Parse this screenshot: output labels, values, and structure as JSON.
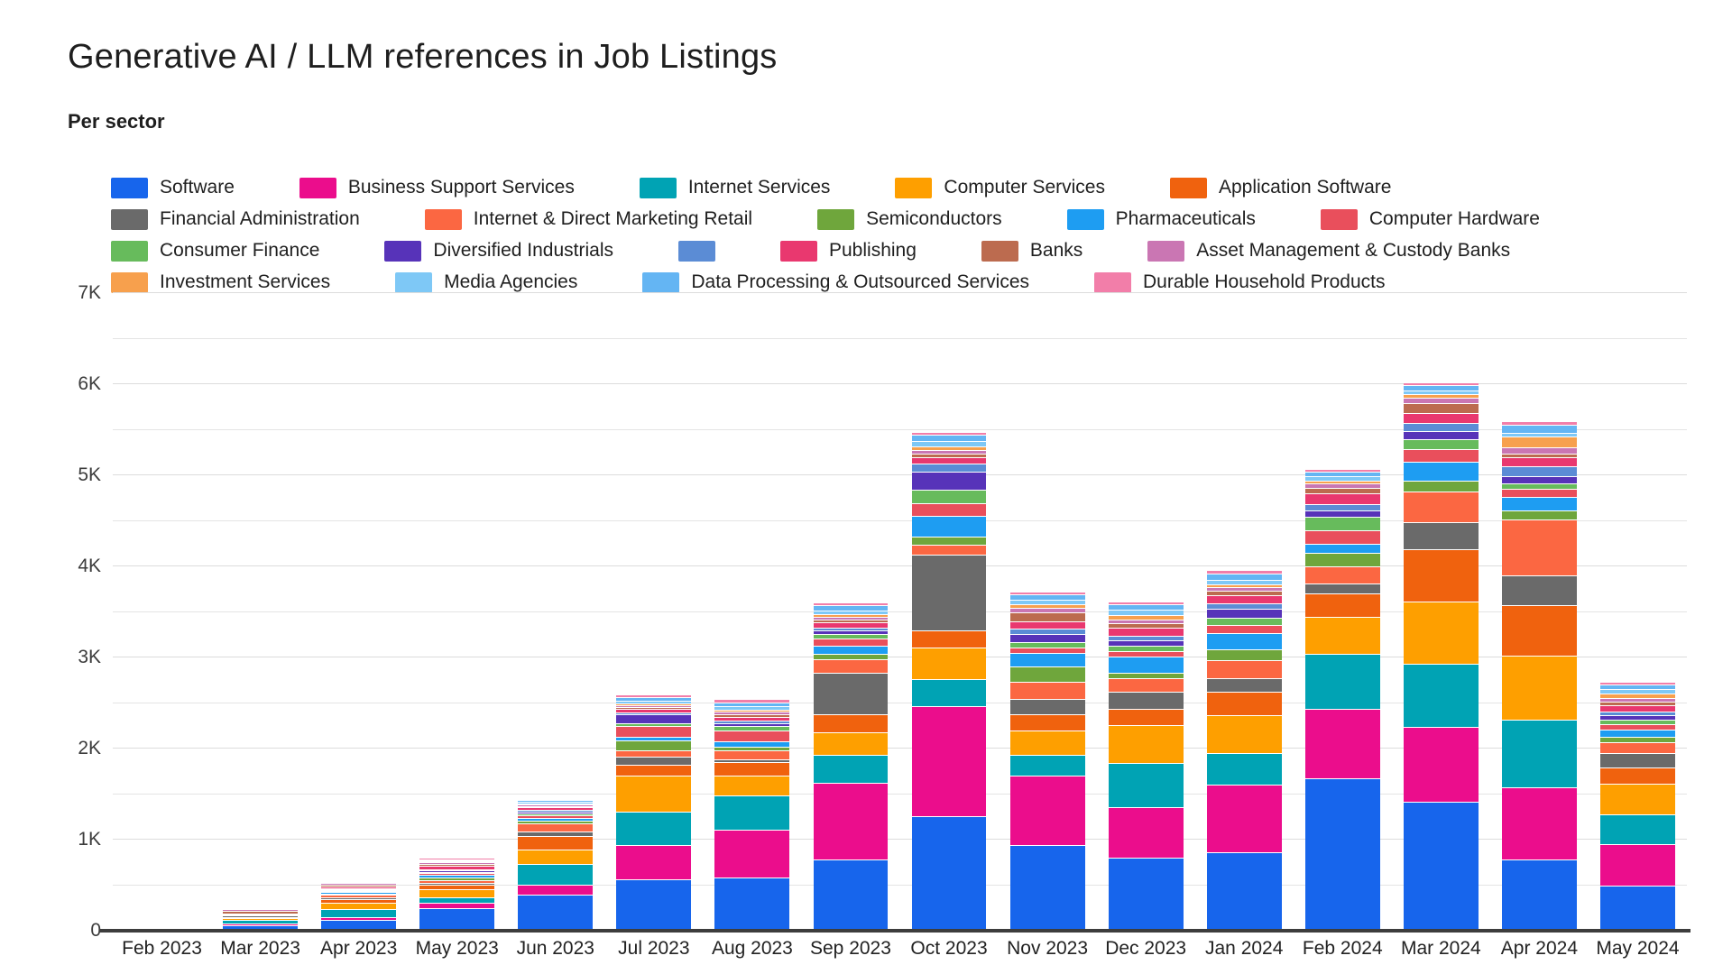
{
  "header": {
    "title": "Generative AI / LLM references in Job Listings",
    "subtitle": "Per sector"
  },
  "chart_data": {
    "type": "bar",
    "stacked": true,
    "title": "Generative AI / LLM references in Job Listings",
    "subtitle": "Per sector",
    "xlabel": "",
    "ylabel": "",
    "ylim": [
      0,
      7000
    ],
    "gridline_step": 500,
    "grid_on": true,
    "legend_position": "top",
    "grid_color": "#e4e4e4",
    "axis_color": "#3d3d3d",
    "y_ticks": [
      0,
      1000,
      2000,
      3000,
      4000,
      5000,
      6000,
      7000
    ],
    "y_tick_labels": [
      "0",
      "1K",
      "2K",
      "3K",
      "4K",
      "5K",
      "6K",
      "7K"
    ],
    "categories": [
      "Feb 2023",
      "Mar 2023",
      "Apr 2023",
      "May 2023",
      "Jun 2023",
      "Jul 2023",
      "Aug 2023",
      "Sep 2023",
      "Oct 2023",
      "Nov 2023",
      "Dec 2023",
      "Jan 2024",
      "Feb 2024",
      "Mar 2024",
      "Apr 2024",
      "May 2024"
    ],
    "series": [
      {
        "name": "Software",
        "color": "#1765ec",
        "values": [
          10,
          60,
          120,
          250,
          400,
          560,
          580,
          780,
          1260,
          940,
          800,
          860,
          1670,
          1420,
          780,
          500
        ]
      },
      {
        "name": "Business Support Services",
        "color": "#eb0d8c",
        "values": [
          5,
          20,
          30,
          60,
          110,
          380,
          530,
          840,
          1210,
          760,
          560,
          740,
          770,
          820,
          790,
          450
        ]
      },
      {
        "name": "Internet Services",
        "color": "#00a3b4",
        "values": [
          5,
          40,
          90,
          60,
          220,
          370,
          380,
          310,
          290,
          230,
          480,
          350,
          600,
          690,
          750,
          330
        ]
      },
      {
        "name": "Computer Services",
        "color": "#fe9f00",
        "values": [
          5,
          20,
          70,
          90,
          160,
          390,
          210,
          250,
          350,
          270,
          420,
          420,
          410,
          680,
          700,
          330
        ]
      },
      {
        "name": "Application Software",
        "color": "#f0620e",
        "values": [
          0,
          10,
          40,
          50,
          150,
          120,
          150,
          200,
          190,
          180,
          180,
          250,
          250,
          580,
          550,
          180
        ]
      },
      {
        "name": "Financial Administration",
        "color": "#6a6a6a",
        "values": [
          0,
          20,
          20,
          20,
          50,
          90,
          30,
          450,
          830,
          170,
          180,
          150,
          110,
          300,
          330,
          160
        ]
      },
      {
        "name": "Internet & Direct Marketing Retail",
        "color": "#fb6742",
        "values": [
          0,
          10,
          30,
          30,
          90,
          70,
          100,
          150,
          110,
          180,
          150,
          200,
          190,
          330,
          620,
          120
        ]
      },
      {
        "name": "Semiconductors",
        "color": "#6fa63c",
        "values": [
          0,
          0,
          10,
          20,
          30,
          110,
          40,
          60,
          90,
          170,
          60,
          120,
          150,
          120,
          90,
          60
        ]
      },
      {
        "name": "Pharmaceuticals",
        "color": "#1e9df2",
        "values": [
          0,
          10,
          20,
          30,
          30,
          40,
          60,
          90,
          230,
          150,
          180,
          180,
          100,
          210,
          150,
          80
        ]
      },
      {
        "name": "Computer Hardware",
        "color": "#e94f5c",
        "values": [
          0,
          0,
          10,
          20,
          30,
          120,
          120,
          80,
          130,
          60,
          60,
          90,
          150,
          140,
          90,
          60
        ]
      },
      {
        "name": "Consumer Finance",
        "color": "#67bb5c",
        "values": [
          0,
          0,
          10,
          10,
          20,
          30,
          50,
          50,
          150,
          60,
          60,
          80,
          150,
          110,
          60,
          50
        ]
      },
      {
        "name": "Diversified Industrials",
        "color": "#5733b9",
        "values": [
          0,
          0,
          10,
          20,
          20,
          100,
          30,
          40,
          200,
          90,
          60,
          100,
          60,
          90,
          80,
          50
        ]
      },
      {
        "name": "",
        "color": "#5b8cd5",
        "values": [
          0,
          0,
          10,
          10,
          20,
          20,
          30,
          30,
          90,
          60,
          50,
          60,
          70,
          90,
          110,
          40
        ]
      },
      {
        "name": "Publishing",
        "color": "#e9386f",
        "values": [
          0,
          0,
          20,
          40,
          30,
          40,
          40,
          60,
          70,
          80,
          90,
          80,
          120,
          100,
          100,
          70
        ]
      },
      {
        "name": "Banks",
        "color": "#bc6b4f",
        "values": [
          10,
          30,
          20,
          20,
          10,
          20,
          30,
          30,
          40,
          100,
          50,
          50,
          60,
          110,
          40,
          40
        ]
      },
      {
        "name": "Asset Management & Custody Banks",
        "color": "#ca76b3",
        "values": [
          0,
          20,
          20,
          20,
          20,
          20,
          30,
          30,
          40,
          50,
          40,
          40,
          50,
          60,
          70,
          40
        ]
      },
      {
        "name": "Investment Services",
        "color": "#f7a04d",
        "values": [
          0,
          0,
          10,
          10,
          10,
          20,
          20,
          30,
          40,
          40,
          50,
          30,
          30,
          40,
          120,
          50
        ]
      },
      {
        "name": "Media Agencies",
        "color": "#7ec8f6",
        "values": [
          0,
          10,
          10,
          10,
          20,
          30,
          40,
          40,
          60,
          50,
          60,
          50,
          50,
          40,
          40,
          40
        ]
      },
      {
        "name": "Data Processing & Outsourced Services",
        "color": "#64b5f3",
        "values": [
          0,
          0,
          10,
          10,
          20,
          40,
          40,
          60,
          70,
          50,
          60,
          70,
          50,
          60,
          90,
          50
        ]
      },
      {
        "name": "Durable Household Products",
        "color": "#f27ea9",
        "values": [
          0,
          0,
          10,
          20,
          10,
          30,
          40,
          30,
          30,
          30,
          30,
          40,
          30,
          30,
          40,
          30
        ]
      }
    ]
  }
}
